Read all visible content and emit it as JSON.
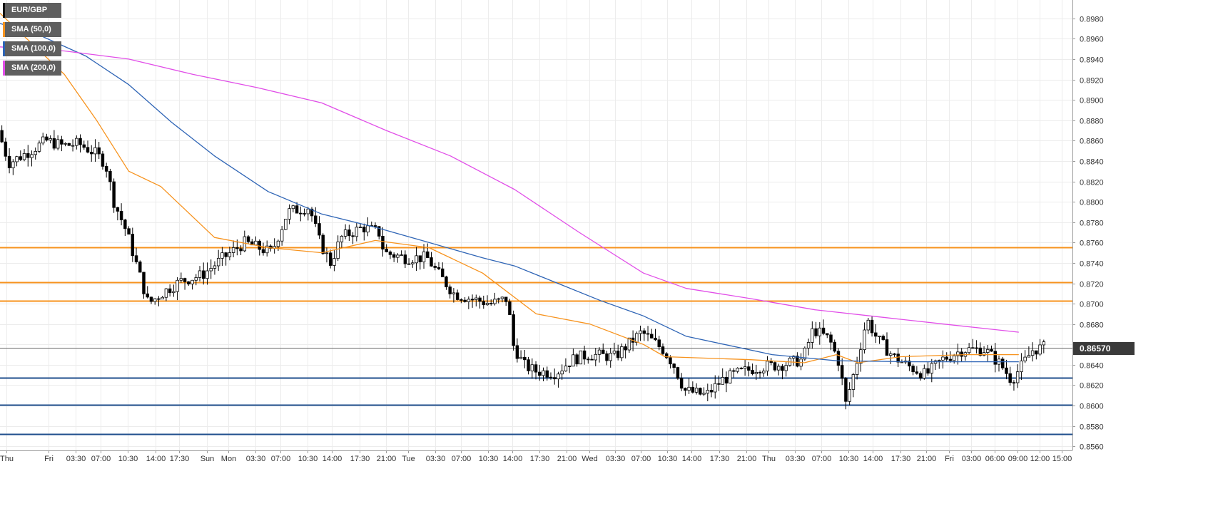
{
  "chart_data": {
    "type": "candlestick",
    "symbol": "EUR/GBP",
    "ylim": [
      0.8556,
      0.8998
    ],
    "y_ticks": [
      "0.8560",
      "0.8580",
      "0.8600",
      "0.8620",
      "0.8640",
      "0.8660",
      "0.8680",
      "0.8700",
      "0.8720",
      "0.8740",
      "0.8760",
      "0.8780",
      "0.8800",
      "0.8820",
      "0.8840",
      "0.8860",
      "0.8880",
      "0.8900",
      "0.8920",
      "0.8940",
      "0.8960",
      "0.8980"
    ],
    "x_ticks": [
      "Thu",
      "Fri",
      "03:30",
      "07:00",
      "10:30",
      "14:00",
      "17:30",
      "Sun",
      "Mon",
      "03:30",
      "07:00",
      "10:30",
      "14:00",
      "17:30",
      "21:00",
      "Tue",
      "03:30",
      "07:00",
      "10:30",
      "14:00",
      "17:30",
      "21:00",
      "Wed",
      "03:30",
      "07:00",
      "10:30",
      "14:00",
      "17:30",
      "21:00",
      "Thu",
      "03:30",
      "07:00",
      "10:30",
      "14:00",
      "17:30",
      "21:00",
      "Fri",
      "03:00",
      "06:00",
      "09:00",
      "12:00",
      "15:00"
    ],
    "current_price": 0.8657,
    "current_price_label": "0.86570",
    "resistance_levels": [
      0.8755,
      0.8721,
      0.8703
    ],
    "support_levels": [
      0.8627,
      0.8601,
      0.8572
    ],
    "series": [
      {
        "name": "SMA (50,0)",
        "color": "#f7931e",
        "values": [
          [
            0.0,
            0.8985
          ],
          [
            0.03,
            0.8955
          ],
          [
            0.06,
            0.8925
          ],
          [
            0.09,
            0.888
          ],
          [
            0.12,
            0.883
          ],
          [
            0.15,
            0.8815
          ],
          [
            0.2,
            0.8765
          ],
          [
            0.25,
            0.8755
          ],
          [
            0.3,
            0.875
          ],
          [
            0.35,
            0.8762
          ],
          [
            0.4,
            0.8755
          ],
          [
            0.45,
            0.873
          ],
          [
            0.5,
            0.869
          ],
          [
            0.55,
            0.868
          ],
          [
            0.6,
            0.866
          ],
          [
            0.62,
            0.8648
          ],
          [
            0.7,
            0.8645
          ],
          [
            0.75,
            0.8642
          ],
          [
            0.78,
            0.865
          ],
          [
            0.8,
            0.8642
          ],
          [
            0.84,
            0.8648
          ],
          [
            0.9,
            0.865
          ],
          [
            0.95,
            0.865
          ]
        ]
      },
      {
        "name": "SMA (100,0)",
        "color": "#2e64b5",
        "values": [
          [
            0.0,
            0.8975
          ],
          [
            0.04,
            0.8962
          ],
          [
            0.08,
            0.8943
          ],
          [
            0.12,
            0.8915
          ],
          [
            0.16,
            0.8878
          ],
          [
            0.2,
            0.8845
          ],
          [
            0.25,
            0.881
          ],
          [
            0.3,
            0.8788
          ],
          [
            0.35,
            0.8775
          ],
          [
            0.4,
            0.876
          ],
          [
            0.45,
            0.8745
          ],
          [
            0.48,
            0.8737
          ],
          [
            0.52,
            0.872
          ],
          [
            0.56,
            0.8703
          ],
          [
            0.6,
            0.8688
          ],
          [
            0.64,
            0.8668
          ],
          [
            0.72,
            0.865
          ],
          [
            0.78,
            0.8644
          ],
          [
            0.85,
            0.8643
          ],
          [
            0.9,
            0.8643
          ],
          [
            0.95,
            0.8643
          ]
        ]
      },
      {
        "name": "SMA (200,0)",
        "color": "#e14ee8",
        "values": [
          [
            0.0,
            0.8952
          ],
          [
            0.06,
            0.8948
          ],
          [
            0.12,
            0.894
          ],
          [
            0.18,
            0.8925
          ],
          [
            0.24,
            0.8912
          ],
          [
            0.3,
            0.8897
          ],
          [
            0.36,
            0.887
          ],
          [
            0.42,
            0.8845
          ],
          [
            0.48,
            0.8812
          ],
          [
            0.54,
            0.877
          ],
          [
            0.6,
            0.873
          ],
          [
            0.64,
            0.8715
          ],
          [
            0.7,
            0.8705
          ],
          [
            0.76,
            0.8694
          ],
          [
            0.82,
            0.8687
          ],
          [
            0.88,
            0.868
          ],
          [
            0.95,
            0.8672
          ]
        ]
      }
    ]
  }
}
